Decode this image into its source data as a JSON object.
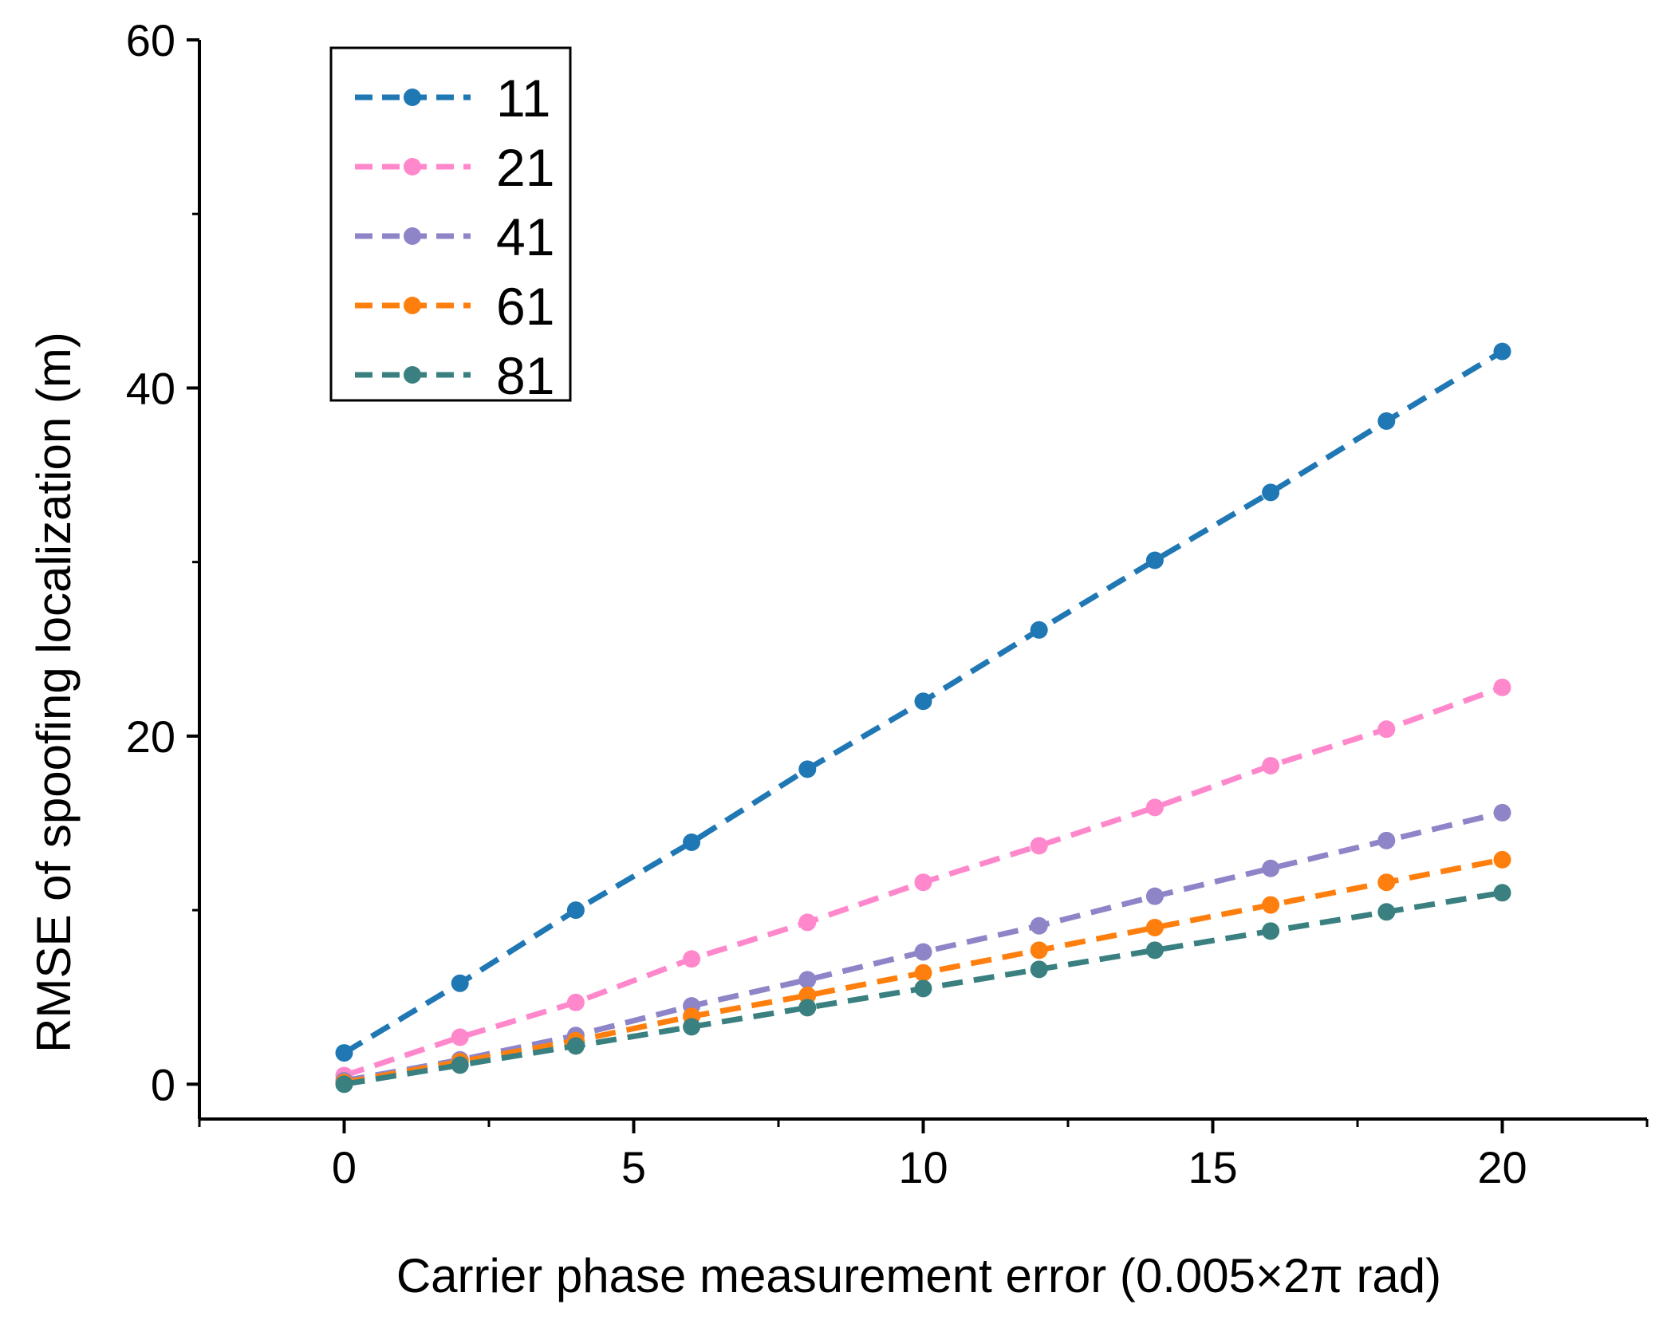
{
  "chart_data": {
    "type": "line",
    "title": "",
    "xlabel": "Carrier phase measurement error (0.005×2π rad)",
    "ylabel": "RMSE of spoofing localization (m)",
    "xlim": [
      -2.5,
      22.5
    ],
    "ylim": [
      -2,
      60
    ],
    "xticks": [
      0,
      5,
      10,
      15,
      20
    ],
    "xtick_labels": [
      "0",
      "5",
      "10",
      "15",
      "20"
    ],
    "yticks": [
      0,
      20,
      40,
      60
    ],
    "ytick_labels": [
      "0",
      "20",
      "40",
      "60"
    ],
    "x": [
      0,
      2,
      4,
      6,
      8,
      10,
      12,
      14,
      16,
      18,
      20
    ],
    "legend_position": "top-left",
    "grid": false,
    "series": [
      {
        "name": "11",
        "color": "#1f77b4",
        "values": [
          1.8,
          5.8,
          10.0,
          13.9,
          18.1,
          22.0,
          26.1,
          30.1,
          34.0,
          38.1,
          42.1
        ]
      },
      {
        "name": "21",
        "color": "#ff88cc",
        "values": [
          0.5,
          2.7,
          4.7,
          7.2,
          9.3,
          11.6,
          13.7,
          15.9,
          18.3,
          20.4,
          22.8
        ]
      },
      {
        "name": "41",
        "color": "#8e85c8",
        "values": [
          0.2,
          1.4,
          2.8,
          4.5,
          6.0,
          7.6,
          9.1,
          10.8,
          12.4,
          14.0,
          15.6
        ]
      },
      {
        "name": "61",
        "color": "#ff7f0e",
        "values": [
          0.1,
          1.3,
          2.5,
          3.9,
          5.1,
          6.4,
          7.7,
          9.0,
          10.3,
          11.6,
          12.9
        ]
      },
      {
        "name": "81",
        "color": "#3a8080",
        "values": [
          0.0,
          1.1,
          2.2,
          3.3,
          4.4,
          5.5,
          6.6,
          7.7,
          8.8,
          9.9,
          11.0
        ]
      }
    ]
  }
}
